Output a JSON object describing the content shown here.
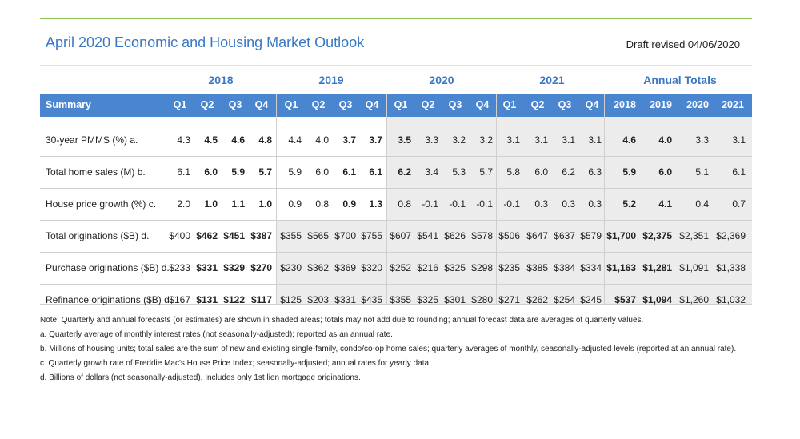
{
  "title": "April 2020 Economic and Housing Market Outlook",
  "draft": "Draft revised 04/06/2020",
  "years": [
    "2018",
    "2019",
    "2020",
    "2021"
  ],
  "annual_header": "Annual Totals",
  "summary_label": "Summary",
  "quarters": [
    "Q1",
    "Q2",
    "Q3",
    "Q4"
  ],
  "annual_years": [
    "2018",
    "2019",
    "2020",
    "2021"
  ],
  "rows": [
    {
      "label": "30-year PMMS (%) a.",
      "q": [
        "4.3",
        "4.5",
        "4.6",
        "4.8",
        "4.4",
        "4.0",
        "3.7",
        "3.7",
        "3.5",
        "3.3",
        "3.2",
        "3.2",
        "3.1",
        "3.1",
        "3.1",
        "3.1"
      ],
      "a": [
        "4.6",
        "4.0",
        "3.3",
        "3.1"
      ]
    },
    {
      "label": "Total home sales (M) b.",
      "q": [
        "6.1",
        "6.0",
        "5.9",
        "5.7",
        "5.9",
        "6.0",
        "6.1",
        "6.1",
        "6.2",
        "3.4",
        "5.3",
        "5.7",
        "5.8",
        "6.0",
        "6.2",
        "6.3"
      ],
      "a": [
        "5.9",
        "6.0",
        "5.1",
        "6.1"
      ]
    },
    {
      "label": "House price growth (%) c.",
      "q": [
        "2.0",
        "1.0",
        "1.1",
        "1.0",
        "0.9",
        "0.8",
        "0.9",
        "1.3",
        "0.8",
        "-0.1",
        "-0.1",
        "-0.1",
        "-0.1",
        "0.3",
        "0.3",
        "0.3"
      ],
      "a": [
        "5.2",
        "4.1",
        "0.4",
        "0.7"
      ]
    },
    {
      "label": "Total originations ($B) d.",
      "q": [
        "$400",
        "$462",
        "$451",
        "$387",
        "$355",
        "$565",
        "$700",
        "$755",
        "$607",
        "$541",
        "$626",
        "$578",
        "$506",
        "$647",
        "$637",
        "$579"
      ],
      "a": [
        "$1,700",
        "$2,375",
        "$2,351",
        "$2,369"
      ]
    },
    {
      "label": "Purchase originations ($B) d.",
      "q": [
        "$233",
        "$331",
        "$329",
        "$270",
        "$230",
        "$362",
        "$369",
        "$320",
        "$252",
        "$216",
        "$325",
        "$298",
        "$235",
        "$385",
        "$384",
        "$334"
      ],
      "a": [
        "$1,163",
        "$1,281",
        "$1,091",
        "$1,338"
      ]
    },
    {
      "label": "Refinance originations ($B) d.",
      "q": [
        "$167",
        "$131",
        "$122",
        "$117",
        "$125",
        "$203",
        "$331",
        "$435",
        "$355",
        "$325",
        "$301",
        "$280",
        "$271",
        "$262",
        "$254",
        "$245"
      ],
      "a": [
        "$537",
        "$1,094",
        "$1,260",
        "$1,032"
      ]
    }
  ],
  "notes": [
    "Note: Quarterly and annual forecasts (or estimates) are shown in shaded areas; totals may not add due to rounding; annual forecast data are averages of quarterly values.",
    "a. Quarterly average of monthly interest rates (not seasonally-adjusted); reported as an annual rate.",
    "b. Millions of housing units; total sales are the sum of new and existing single-family, condo/co-op home sales; quarterly averages of monthly, seasonally-adjusted levels (reported at an annual rate).",
    "c. Quarterly growth rate of Freddie Mac's House Price Index; seasonally-adjusted; annual rates for yearly data.",
    "d. Billions of dollars (not seasonally-adjusted). Includes only 1st lien mortgage originations."
  ]
}
